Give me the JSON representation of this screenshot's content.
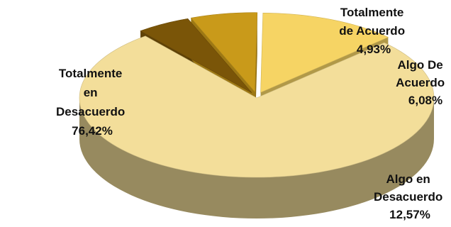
{
  "chart_data": {
    "type": "pie",
    "style": "3d-exploded",
    "slices": [
      {
        "label_lines": [
          "Totalmente",
          "en",
          "Desacuerdo",
          "76,42%"
        ],
        "value": 76.42,
        "color": "#F3DE9A"
      },
      {
        "label_lines": [
          "Totalmente",
          "de Acuerdo",
          "4,93%"
        ],
        "value": 4.93,
        "color": "#7A5508"
      },
      {
        "label_lines": [
          "Algo De",
          "Acuerdo",
          "6,08%"
        ],
        "value": 6.08,
        "color": "#C99A1A"
      },
      {
        "label_lines": [
          "Algo en",
          "Desacuerdo",
          "12,57%"
        ],
        "value": 12.57,
        "color": "#F6D464"
      }
    ]
  }
}
